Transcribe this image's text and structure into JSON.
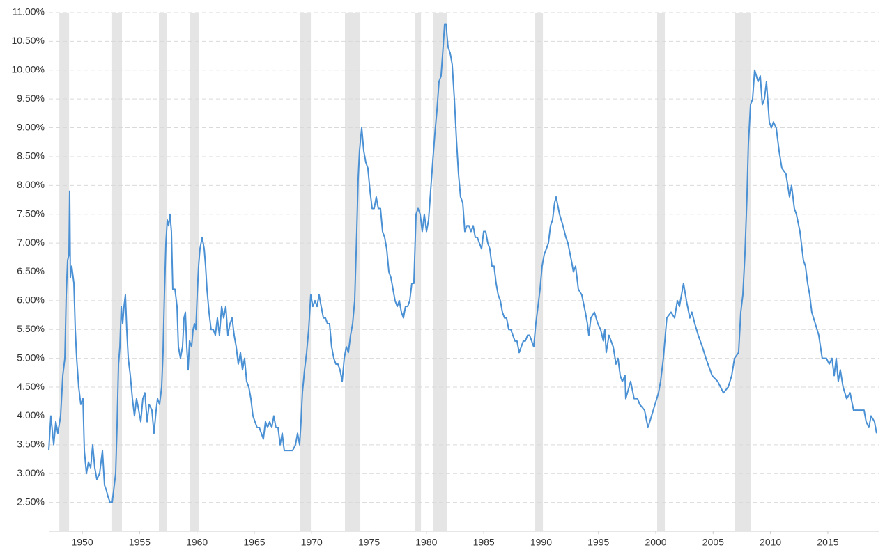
{
  "chart_data": {
    "type": "line",
    "color": "#4a90d4",
    "grid": true,
    "recession_color": "#e5e5e5",
    "xlim": [
      1947.08,
      2019.5
    ],
    "ylim": [
      2.0,
      11.0
    ],
    "xticks": [
      1950,
      1955,
      1960,
      1965,
      1970,
      1975,
      1980,
      1985,
      1990,
      1995,
      2000,
      2005,
      2010,
      2015
    ],
    "yticks": [
      {
        "value": 2.5,
        "label": "2.50%"
      },
      {
        "value": 3.0,
        "label": "3.00%"
      },
      {
        "value": 3.5,
        "label": "3.50%"
      },
      {
        "value": 4.0,
        "label": "4.00%"
      },
      {
        "value": 4.5,
        "label": "4.50%"
      },
      {
        "value": 5.0,
        "label": "5.00%"
      },
      {
        "value": 5.5,
        "label": "5.50%"
      },
      {
        "value": 6.0,
        "label": "6.00%"
      },
      {
        "value": 6.5,
        "label": "6.50%"
      },
      {
        "value": 7.0,
        "label": "7.00%"
      },
      {
        "value": 7.5,
        "label": "7.50%"
      },
      {
        "value": 8.0,
        "label": "8.00%"
      },
      {
        "value": 8.5,
        "label": "8.50%"
      },
      {
        "value": 9.0,
        "label": "9.00%"
      },
      {
        "value": 9.5,
        "label": "9.50%"
      },
      {
        "value": 10.0,
        "label": "10.00%"
      },
      {
        "value": 10.5,
        "label": "10.50%"
      },
      {
        "value": 11.0,
        "label": "11.00%"
      }
    ],
    "recessions": [
      [
        1948.0,
        1948.85
      ],
      [
        1952.6,
        1953.46
      ],
      [
        1956.68,
        1957.35
      ],
      [
        1959.36,
        1960.2
      ],
      [
        1969.0,
        1969.93
      ],
      [
        1972.9,
        1974.24
      ],
      [
        1979.04,
        1979.53
      ],
      [
        1980.56,
        1981.83
      ],
      [
        1989.49,
        1990.16
      ],
      [
        2000.12,
        2000.79
      ],
      [
        2006.87,
        2008.32
      ]
    ],
    "x": [
      1947.08,
      1947.26,
      1947.51,
      1947.69,
      1947.87,
      1948.11,
      1948.3,
      1948.48,
      1948.6,
      1948.72,
      1948.84,
      1948.9,
      1948.96,
      1949.08,
      1949.27,
      1949.39,
      1949.51,
      1949.69,
      1949.87,
      1950.06,
      1950.18,
      1950.36,
      1950.54,
      1950.73,
      1950.91,
      1951.09,
      1951.27,
      1951.51,
      1951.76,
      1951.94,
      1952.12,
      1952.24,
      1952.43,
      1952.61,
      1952.79,
      1952.91,
      1953.03,
      1953.16,
      1953.28,
      1953.4,
      1953.52,
      1953.64,
      1953.76,
      1953.88,
      1954.01,
      1954.19,
      1954.37,
      1954.55,
      1954.73,
      1954.92,
      1955.1,
      1955.28,
      1955.46,
      1955.65,
      1955.83,
      1956.07,
      1956.25,
      1956.44,
      1956.56,
      1956.74,
      1956.92,
      1957.04,
      1957.16,
      1957.29,
      1957.41,
      1957.53,
      1957.65,
      1957.77,
      1957.89,
      1958.08,
      1958.26,
      1958.38,
      1958.56,
      1958.74,
      1958.87,
      1958.99,
      1959.11,
      1959.23,
      1959.35,
      1959.53,
      1959.66,
      1959.78,
      1959.9,
      1960.02,
      1960.14,
      1960.26,
      1960.45,
      1960.63,
      1960.75,
      1960.87,
      1961.05,
      1961.23,
      1961.42,
      1961.6,
      1961.78,
      1961.96,
      1962.15,
      1962.33,
      1962.51,
      1962.69,
      1962.88,
      1963.06,
      1963.24,
      1963.42,
      1963.6,
      1963.79,
      1963.97,
      1964.15,
      1964.33,
      1964.52,
      1964.7,
      1964.88,
      1965.06,
      1965.24,
      1965.43,
      1965.61,
      1965.79,
      1965.97,
      1966.16,
      1966.34,
      1966.52,
      1966.7,
      1966.88,
      1967.07,
      1967.25,
      1967.43,
      1967.61,
      1967.98,
      1968.34,
      1968.59,
      1968.77,
      1968.95,
      1969.07,
      1969.19,
      1969.38,
      1969.56,
      1969.74,
      1969.92,
      1970.1,
      1970.29,
      1970.47,
      1970.65,
      1970.83,
      1971.02,
      1971.2,
      1971.38,
      1971.56,
      1971.74,
      1971.93,
      1972.11,
      1972.29,
      1972.47,
      1972.66,
      1972.84,
      1973.02,
      1973.2,
      1973.39,
      1973.57,
      1973.75,
      1973.93,
      1974.05,
      1974.17,
      1974.36,
      1974.54,
      1974.72,
      1974.9,
      1975.09,
      1975.27,
      1975.45,
      1975.63,
      1975.81,
      1976.0,
      1976.18,
      1976.36,
      1976.54,
      1976.73,
      1976.91,
      1977.09,
      1977.27,
      1977.46,
      1977.64,
      1977.82,
      1978.0,
      1978.18,
      1978.37,
      1978.55,
      1978.73,
      1978.91,
      1979.1,
      1979.28,
      1979.46,
      1979.64,
      1979.82,
      1980.01,
      1980.19,
      1980.37,
      1980.55,
      1980.74,
      1980.92,
      1981.1,
      1981.28,
      1981.46,
      1981.59,
      1981.71,
      1981.89,
      1982.07,
      1982.25,
      1982.44,
      1982.62,
      1982.8,
      1982.98,
      1983.17,
      1983.35,
      1983.53,
      1983.71,
      1983.89,
      1984.08,
      1984.26,
      1984.44,
      1984.62,
      1984.81,
      1984.99,
      1985.17,
      1985.35,
      1985.53,
      1985.72,
      1985.9,
      1986.08,
      1986.26,
      1986.45,
      1986.63,
      1986.81,
      1986.99,
      1987.18,
      1987.36,
      1987.54,
      1987.72,
      1987.9,
      1988.09,
      1988.27,
      1988.45,
      1988.63,
      1988.82,
      1989.0,
      1989.18,
      1989.36,
      1989.54,
      1989.73,
      1989.91,
      1990.09,
      1990.27,
      1990.46,
      1990.64,
      1990.82,
      1991.0,
      1991.18,
      1991.31,
      1991.61,
      1991.91,
      1992.16,
      1992.34,
      1992.64,
      1992.82,
      1993.01,
      1993.25,
      1993.55,
      1993.86,
      1994.04,
      1994.16,
      1994.34,
      1994.65,
      1994.95,
      1995.19,
      1995.43,
      1995.56,
      1995.68,
      1995.92,
      1996.29,
      1996.53,
      1996.71,
      1996.9,
      1997.08,
      1997.32,
      1997.38,
      1997.81,
      1998.11,
      1998.41,
      1998.6,
      1999.02,
      1999.32,
      1999.63,
      1999.93,
      2000.24,
      2000.42,
      2000.66,
      2000.96,
      2001.33,
      2001.64,
      2001.88,
      2002.06,
      2002.42,
      2002.67,
      2002.97,
      2003.15,
      2003.4,
      2003.7,
      2004.06,
      2004.37,
      2004.91,
      2005.4,
      2005.89,
      2006.31,
      2006.62,
      2006.86,
      2007.22,
      2007.41,
      2007.59,
      2007.77,
      2007.95,
      2008.07,
      2008.26,
      2008.44,
      2008.62,
      2008.92,
      2009.11,
      2009.29,
      2009.47,
      2009.65,
      2009.9,
      2010.08,
      2010.26,
      2010.5,
      2010.75,
      2010.99,
      2011.35,
      2011.66,
      2011.84,
      2012.08,
      2012.26,
      2012.57,
      2012.87,
      2013.05,
      2013.24,
      2013.42,
      2013.6,
      2013.91,
      2014.21,
      2014.51,
      2014.88,
      2015.12,
      2015.36,
      2015.55,
      2015.73,
      2015.91,
      2016.09,
      2016.33,
      2016.64,
      2016.94,
      2017.24,
      2018.16,
      2018.34,
      2018.58,
      2018.77,
      2019.07,
      2019.25
    ],
    "values": [
      3.4,
      4.0,
      3.5,
      3.9,
      3.7,
      4.0,
      4.7,
      5.0,
      6.1,
      6.7,
      6.8,
      7.9,
      6.4,
      6.6,
      6.3,
      5.5,
      5.0,
      4.5,
      4.2,
      4.3,
      3.4,
      3.0,
      3.2,
      3.1,
      3.5,
      3.1,
      2.9,
      3.0,
      3.4,
      2.8,
      2.7,
      2.6,
      2.5,
      2.5,
      2.8,
      3.0,
      3.8,
      4.9,
      5.2,
      5.9,
      5.6,
      5.9,
      6.1,
      5.5,
      5.0,
      4.7,
      4.3,
      4.0,
      4.3,
      4.1,
      3.9,
      4.3,
      4.4,
      3.9,
      4.2,
      4.1,
      3.7,
      4.1,
      4.3,
      4.2,
      4.5,
      5.1,
      6.1,
      7.0,
      7.4,
      7.3,
      7.5,
      7.2,
      6.2,
      6.2,
      5.9,
      5.2,
      5.0,
      5.2,
      5.7,
      5.8,
      5.2,
      4.8,
      5.3,
      5.2,
      5.5,
      5.6,
      5.5,
      6.1,
      6.6,
      6.9,
      7.1,
      6.9,
      6.6,
      6.2,
      5.8,
      5.5,
      5.5,
      5.4,
      5.7,
      5.4,
      5.9,
      5.7,
      5.9,
      5.4,
      5.6,
      5.7,
      5.4,
      5.2,
      4.9,
      5.1,
      4.8,
      5.0,
      4.6,
      4.5,
      4.3,
      4.0,
      3.9,
      3.8,
      3.8,
      3.7,
      3.6,
      3.9,
      3.8,
      3.9,
      3.8,
      4.0,
      3.8,
      3.8,
      3.5,
      3.7,
      3.4,
      3.4,
      3.4,
      3.5,
      3.7,
      3.5,
      3.9,
      4.4,
      4.8,
      5.1,
      5.5,
      6.1,
      5.9,
      6.0,
      5.9,
      6.1,
      5.9,
      5.7,
      5.7,
      5.6,
      5.6,
      5.2,
      5.0,
      4.9,
      4.9,
      4.8,
      4.6,
      5.0,
      5.2,
      5.1,
      5.4,
      5.6,
      6.0,
      7.2,
      8.1,
      8.6,
      9.0,
      8.6,
      8.4,
      8.3,
      7.9,
      7.6,
      7.6,
      7.8,
      7.6,
      7.6,
      7.2,
      7.1,
      6.9,
      6.5,
      6.4,
      6.2,
      6.0,
      5.9,
      6.0,
      5.8,
      5.7,
      5.9,
      5.9,
      6.0,
      6.3,
      6.3,
      7.5,
      7.6,
      7.5,
      7.2,
      7.5,
      7.2,
      7.4,
      7.9,
      8.4,
      8.9,
      9.3,
      9.8,
      9.9,
      10.4,
      10.8,
      10.8,
      10.4,
      10.3,
      10.1,
      9.5,
      8.8,
      8.2,
      7.8,
      7.7,
      7.2,
      7.3,
      7.3,
      7.2,
      7.3,
      7.1,
      7.1,
      7.0,
      6.9,
      7.2,
      7.2,
      7.0,
      6.9,
      6.6,
      6.6,
      6.3,
      6.1,
      6.0,
      5.8,
      5.7,
      5.7,
      5.5,
      5.5,
      5.4,
      5.3,
      5.3,
      5.1,
      5.2,
      5.3,
      5.3,
      5.4,
      5.4,
      5.3,
      5.2,
      5.6,
      5.9,
      6.2,
      6.6,
      6.8,
      6.9,
      7.0,
      7.3,
      7.4,
      7.7,
      7.8,
      7.5,
      7.3,
      7.1,
      7.0,
      6.7,
      6.5,
      6.6,
      6.2,
      6.1,
      5.8,
      5.6,
      5.4,
      5.7,
      5.8,
      5.6,
      5.5,
      5.3,
      5.5,
      5.1,
      5.4,
      5.2,
      4.9,
      5.0,
      4.7,
      4.6,
      4.7,
      4.3,
      4.6,
      4.3,
      4.3,
      4.2,
      4.1,
      3.8,
      4.0,
      4.2,
      4.4,
      4.6,
      5.0,
      5.7,
      5.8,
      5.7,
      6.0,
      5.9,
      6.3,
      6.0,
      5.7,
      5.8,
      5.6,
      5.4,
      5.2,
      5.0,
      4.7,
      4.6,
      4.4,
      4.5,
      4.7,
      5.0,
      5.1,
      5.8,
      6.1,
      6.8,
      7.8,
      8.7,
      9.4,
      9.5,
      10.0,
      9.8,
      9.9,
      9.4,
      9.5,
      9.8,
      9.1,
      9.0,
      9.1,
      9.0,
      8.6,
      8.3,
      8.2,
      7.8,
      8.0,
      7.6,
      7.5,
      7.2,
      6.7,
      6.6,
      6.3,
      6.1,
      5.8,
      5.6,
      5.4,
      5.0,
      5.0,
      4.9,
      5.0,
      4.7,
      5.0,
      4.6,
      4.8,
      4.5,
      4.3,
      4.4,
      4.1,
      4.1,
      3.9,
      3.8,
      4.0,
      3.9,
      3.7
    ]
  }
}
